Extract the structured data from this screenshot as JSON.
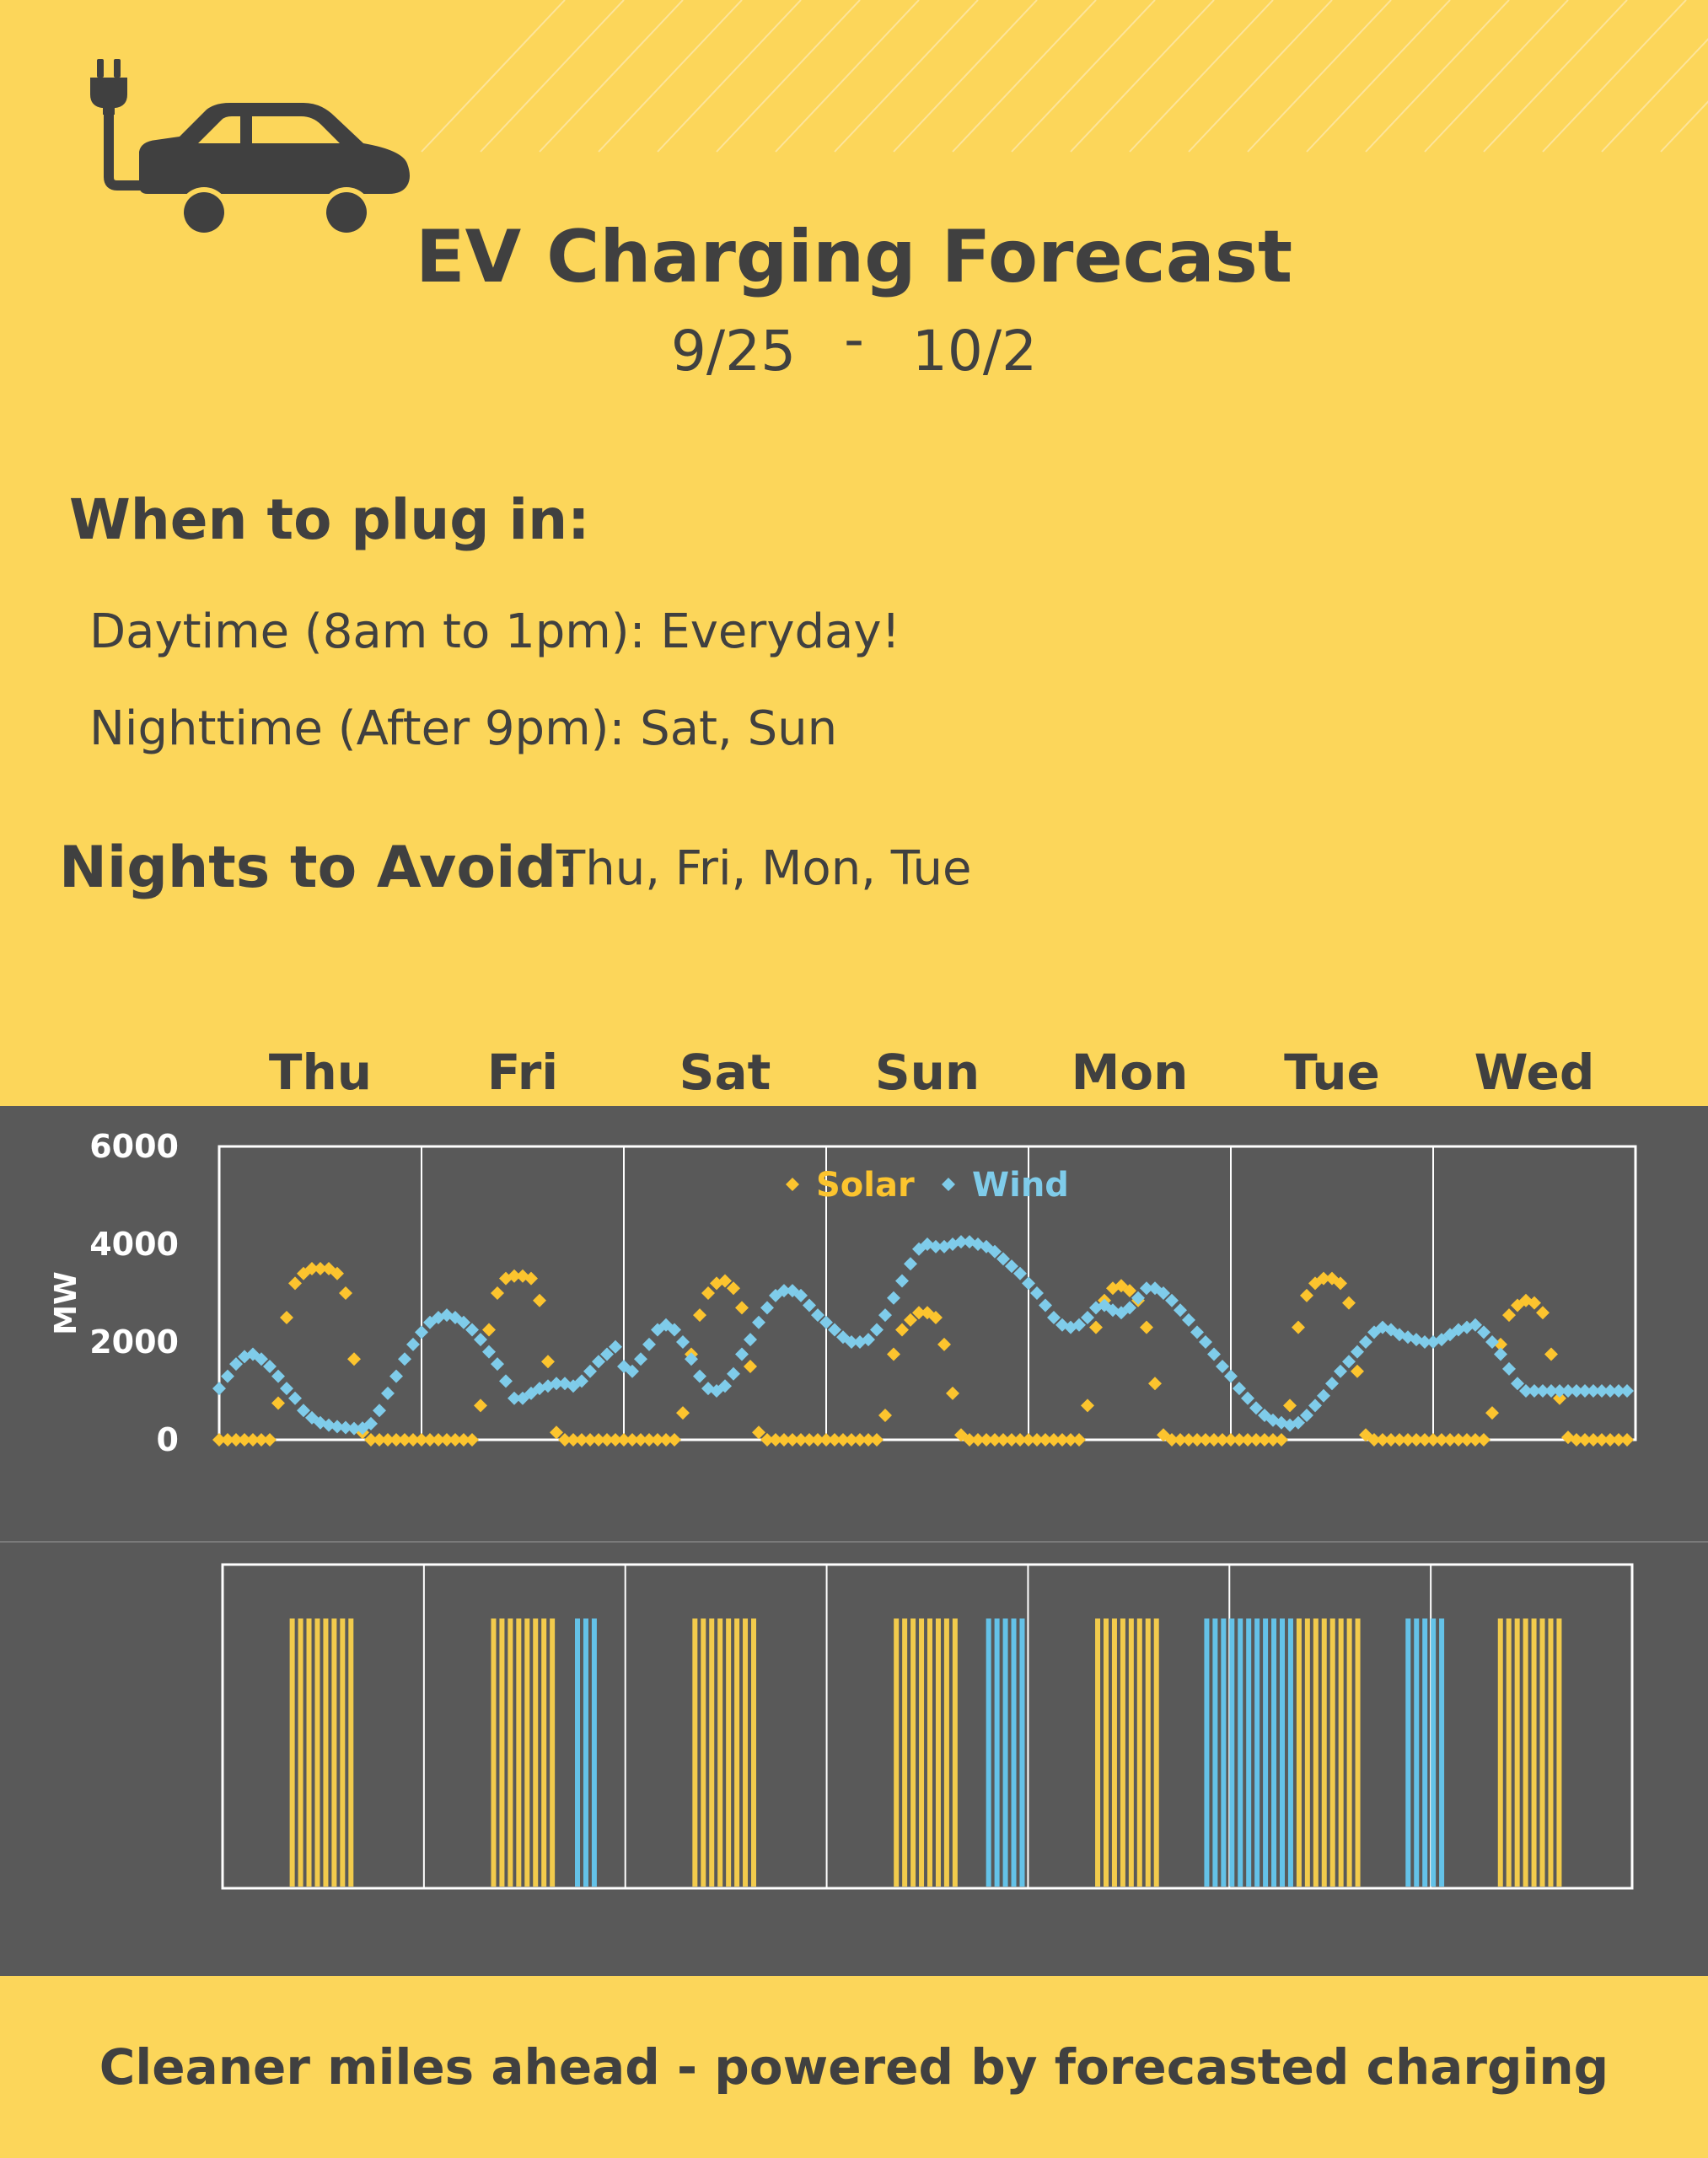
{
  "header": {
    "title": "EV Charging Forecast",
    "start_date": "9/25",
    "separator": "-",
    "end_date": "10/2"
  },
  "plug_in": {
    "heading": "When to plug in:",
    "daytime_label": "Daytime (8am to 1pm):",
    "daytime_value": "Everyday!",
    "nighttime_label": "Nighttime  (After 9pm):",
    "nighttime_value": "Sat, Sun"
  },
  "avoid": {
    "heading": "Nights to Avoid:",
    "value": "Thu, Fri, Mon, Tue"
  },
  "days": [
    "Thu",
    "Fri",
    "Sat",
    "Sun",
    "Mon",
    "Tue",
    "Wed"
  ],
  "footer": "Cleaner miles ahead - powered by forecasted charging",
  "colors": {
    "background": "#FCD65A",
    "panel": "#595959",
    "solar": "#FCC42E",
    "wind": "#7FCCEA",
    "charge_solar": "#F2CB4C",
    "charge_wind": "#64C2E8",
    "text": "#404040"
  },
  "chart_data": [
    {
      "type": "scatter",
      "title": "",
      "xlabel": "",
      "ylabel": "MW",
      "ylim": [
        0,
        6000
      ],
      "yticks": [
        0,
        2000,
        4000,
        6000
      ],
      "categories": [
        "Thu",
        "Fri",
        "Sat",
        "Sun",
        "Mon",
        "Tue",
        "Wed"
      ],
      "x_unit": "hour",
      "grid": "vertical day separators",
      "legend_position": "top-center",
      "series": [
        {
          "name": "Solar",
          "color": "#FCC42E",
          "days": [
            [
              0,
              0,
              0,
              0,
              0,
              0,
              0,
              750,
              2500,
              3200,
              3400,
              3500,
              3500,
              3500,
              3400,
              3000,
              1650,
              150,
              0,
              0,
              0,
              0,
              0,
              0
            ],
            [
              0,
              0,
              0,
              0,
              0,
              0,
              0,
              700,
              2250,
              3000,
              3300,
              3350,
              3350,
              3300,
              2850,
              1600,
              150,
              0,
              0,
              0,
              0,
              0,
              0,
              0
            ],
            [
              0,
              0,
              0,
              0,
              0,
              0,
              0,
              550,
              1750,
              2550,
              3000,
              3200,
              3250,
              3100,
              2700,
              1500,
              150,
              0,
              0,
              0,
              0,
              0,
              0,
              0
            ],
            [
              0,
              0,
              0,
              0,
              0,
              0,
              0,
              500,
              1750,
              2250,
              2450,
              2600,
              2600,
              2500,
              1950,
              950,
              100,
              0,
              0,
              0,
              0,
              0,
              0,
              0
            ],
            [
              0,
              0,
              0,
              0,
              0,
              0,
              0,
              700,
              2300,
              2850,
              3100,
              3150,
              3050,
              2850,
              2300,
              1150,
              100,
              0,
              0,
              0,
              0,
              0,
              0,
              0
            ],
            [
              0,
              0,
              0,
              0,
              0,
              0,
              0,
              700,
              2300,
              2950,
              3200,
              3300,
              3300,
              3200,
              2800,
              1400,
              100,
              0,
              0,
              0,
              0,
              0,
              0,
              0
            ],
            [
              0,
              0,
              0,
              0,
              0,
              0,
              0,
              550,
              1950,
              2550,
              2750,
              2850,
              2800,
              2600,
              1750,
              850,
              50,
              0,
              0,
              0,
              0,
              0,
              0,
              0
            ]
          ]
        },
        {
          "name": "Wind",
          "color": "#7FCCEA",
          "days": [
            [
              1050,
              1300,
              1550,
              1700,
              1750,
              1650,
              1500,
              1300,
              1050,
              850,
              600,
              450,
              350,
              300,
              270,
              250,
              230,
              240,
              330,
              600,
              950,
              1300,
              1650,
              1950
            ],
            [
              2200,
              2400,
              2500,
              2550,
              2500,
              2400,
              2250,
              2050,
              1800,
              1550,
              1200,
              850,
              850,
              950,
              1050,
              1100,
              1150,
              1150,
              1100,
              1200,
              1400,
              1600,
              1750,
              1900
            ],
            [
              1500,
              1400,
              1650,
              1950,
              2250,
              2350,
              2250,
              2000,
              1650,
              1300,
              1050,
              1000,
              1100,
              1350,
              1750,
              2050,
              2400,
              2700,
              2950,
              3050,
              3050,
              2950,
              2750,
              2550
            ],
            [
              2400,
              2250,
              2100,
              2000,
              2000,
              2050,
              2250,
              2550,
              2900,
              3250,
              3600,
              3900,
              4000,
              3950,
              3950,
              4000,
              4050,
              4050,
              4000,
              3950,
              3850,
              3700,
              3550,
              3400
            ],
            [
              3200,
              3000,
              2750,
              2500,
              2350,
              2300,
              2350,
              2500,
              2700,
              2750,
              2650,
              2600,
              2700,
              2900,
              3100,
              3100,
              3000,
              2850,
              2650,
              2450,
              2200,
              2000,
              1750,
              1500
            ],
            [
              1300,
              1050,
              850,
              650,
              500,
              400,
              350,
              300,
              350,
              500,
              700,
              900,
              1150,
              1400,
              1600,
              1800,
              2000,
              2200,
              2300,
              2250,
              2150,
              2100,
              2050,
              2000
            ],
            [
              2000,
              2050,
              2150,
              2250,
              2300,
              2350,
              2200,
              2000,
              1750,
              1450,
              1150,
              1000,
              1000,
              1000,
              1000,
              1000,
              1000,
              1000,
              1000,
              1000,
              1000,
              1000,
              1000,
              1000
            ]
          ]
        }
      ]
    },
    {
      "type": "bar",
      "title": "",
      "description_free": true,
      "categories": [
        "Thu",
        "Fri",
        "Sat",
        "Sun",
        "Mon",
        "Tue",
        "Wed"
      ],
      "x_unit": "hour",
      "series": [
        {
          "name": "",
          "color": "#F2CB4C",
          "hours": [
            [
              8,
              9,
              10,
              11,
              12,
              13,
              14,
              15
            ],
            [
              8,
              9,
              10,
              11,
              12,
              13,
              14,
              15
            ],
            [
              8,
              9,
              10,
              11,
              12,
              13,
              14,
              15
            ],
            [
              8,
              9,
              10,
              11,
              12,
              13,
              14,
              15
            ],
            [
              8,
              9,
              10,
              11,
              12,
              13,
              14,
              15
            ],
            [
              8,
              9,
              10,
              11,
              12,
              13,
              14,
              15
            ],
            [
              8,
              9,
              10,
              11,
              12,
              13,
              14,
              15
            ]
          ]
        },
        {
          "name": "",
          "color": "#64C2E8",
          "hours": [
            [],
            [
              18,
              19,
              20
            ],
            [],
            [
              19,
              20,
              21,
              22,
              23
            ],
            [
              21,
              22,
              23,
              0,
              1,
              2,
              3,
              4,
              5,
              6,
              7
            ],
            [
              21,
              22,
              23,
              0,
              1
            ],
            []
          ]
        }
      ]
    }
  ]
}
